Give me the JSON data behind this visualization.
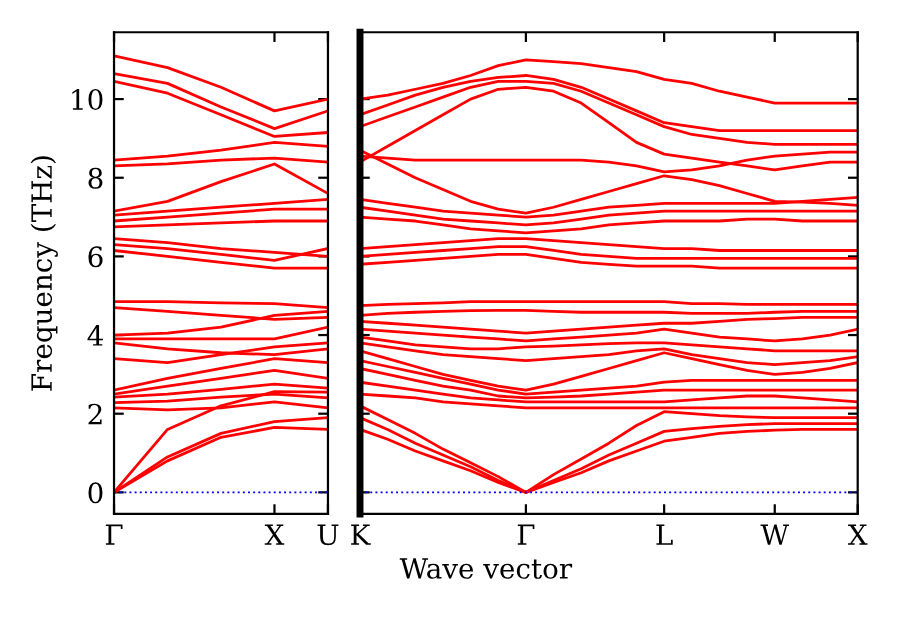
{
  "chart_data": [
    {
      "type": "line",
      "ylabel": "Frequency (THz)",
      "categories": [
        "Γ",
        null,
        null,
        "X",
        "U"
      ],
      "ylim": [
        -0.55,
        11.7
      ],
      "yticks": [
        0,
        2,
        4,
        6,
        8,
        10
      ],
      "grid": false,
      "line_style": "solid",
      "ref_lines": [
        {
          "axis": "y",
          "value": 0,
          "color": "#0000ff",
          "line_style": "dotted"
        }
      ],
      "series": [
        {
          "color": "#ff0000",
          "values": [
            11.1,
            10.8,
            10.3,
            9.7,
            10.0
          ]
        },
        {
          "color": "#ff0000",
          "values": [
            10.65,
            10.4,
            9.8,
            9.25,
            9.7
          ]
        },
        {
          "color": "#ff0000",
          "values": [
            10.45,
            10.15,
            9.6,
            9.05,
            9.15
          ]
        },
        {
          "color": "#ff0000",
          "values": [
            8.45,
            8.55,
            8.7,
            8.9,
            8.8
          ]
        },
        {
          "color": "#ff0000",
          "values": [
            8.3,
            8.35,
            8.45,
            8.5,
            8.4
          ]
        },
        {
          "color": "#ff0000",
          "values": [
            7.15,
            7.4,
            7.9,
            8.35,
            7.6
          ]
        },
        {
          "color": "#ff0000",
          "values": [
            7.05,
            7.15,
            7.25,
            7.35,
            7.45
          ]
        },
        {
          "color": "#ff0000",
          "values": [
            6.9,
            7.0,
            7.1,
            7.2,
            7.2
          ]
        },
        {
          "color": "#ff0000",
          "values": [
            6.75,
            6.8,
            6.85,
            6.9,
            6.9
          ]
        },
        {
          "color": "#ff0000",
          "values": [
            6.45,
            6.35,
            6.2,
            6.1,
            6.0
          ]
        },
        {
          "color": "#ff0000",
          "values": [
            6.3,
            6.2,
            6.05,
            5.9,
            6.2
          ]
        },
        {
          "color": "#ff0000",
          "values": [
            6.15,
            6.0,
            5.85,
            5.7,
            5.7
          ]
        },
        {
          "color": "#ff0000",
          "values": [
            4.85,
            4.85,
            4.82,
            4.8,
            4.7
          ]
        },
        {
          "color": "#ff0000",
          "values": [
            4.7,
            4.6,
            4.5,
            4.4,
            4.45
          ]
        },
        {
          "color": "#ff0000",
          "values": [
            4.0,
            4.05,
            4.2,
            4.5,
            4.6
          ]
        },
        {
          "color": "#ff0000",
          "values": [
            3.9,
            3.9,
            3.9,
            3.9,
            4.2
          ]
        },
        {
          "color": "#ff0000",
          "values": [
            3.8,
            3.65,
            3.55,
            3.5,
            3.65
          ]
        },
        {
          "color": "#ff0000",
          "values": [
            3.4,
            3.3,
            3.5,
            3.7,
            3.8
          ]
        },
        {
          "color": "#ff0000",
          "values": [
            2.6,
            2.9,
            3.15,
            3.4,
            3.3
          ]
        },
        {
          "color": "#ff0000",
          "values": [
            2.5,
            2.7,
            2.9,
            3.1,
            2.9
          ]
        },
        {
          "color": "#ff0000",
          "values": [
            2.42,
            2.5,
            2.62,
            2.75,
            2.65
          ]
        },
        {
          "color": "#ff0000",
          "values": [
            2.28,
            2.32,
            2.42,
            2.5,
            2.4
          ]
        },
        {
          "color": "#ff0000",
          "values": [
            2.15,
            2.1,
            2.15,
            2.3,
            2.15
          ]
        },
        {
          "color": "#ff0000",
          "values": [
            0,
            1.6,
            2.2,
            2.56,
            2.55
          ]
        },
        {
          "color": "#ff0000",
          "values": [
            0,
            0.9,
            1.5,
            1.8,
            1.9
          ]
        },
        {
          "color": "#ff0000",
          "values": [
            0,
            0.8,
            1.4,
            1.65,
            1.6
          ]
        }
      ]
    },
    {
      "type": "line",
      "xlabel": "Wave vector",
      "categories": [
        "K",
        null,
        null,
        null,
        null,
        null,
        "Γ",
        null,
        null,
        null,
        null,
        "L",
        null,
        null,
        null,
        "W",
        null,
        null,
        "X"
      ],
      "ylim": [
        -0.55,
        11.7
      ],
      "yticks": [
        {
          "value": 0,
          "label": null
        },
        {
          "value": 2,
          "label": null
        },
        {
          "value": 4,
          "label": null
        },
        {
          "value": 6,
          "label": null
        },
        {
          "value": 8,
          "label": null
        },
        {
          "value": 10,
          "label": null
        }
      ],
      "tick_labels": "x",
      "grid": false,
      "line_style": "solid",
      "ref_lines": [
        {
          "axis": "y",
          "value": 0,
          "color": "#0000ff",
          "line_style": "dotted"
        }
      ],
      "series": [
        {
          "color": "#ff0000",
          "values": [
            10.0,
            10.1,
            10.25,
            10.4,
            10.6,
            10.85,
            11.0,
            10.95,
            10.9,
            10.8,
            10.7,
            10.5,
            10.4,
            10.2,
            10.05,
            9.9,
            9.9,
            9.9,
            9.9
          ]
        },
        {
          "color": "#ff0000",
          "values": [
            9.6,
            9.85,
            10.1,
            10.3,
            10.45,
            10.55,
            10.6,
            10.5,
            10.3,
            10.0,
            9.7,
            9.4,
            9.3,
            9.2,
            9.2,
            9.2,
            9.2,
            9.2,
            9.2
          ]
        },
        {
          "color": "#ff0000",
          "values": [
            9.3,
            9.55,
            9.8,
            10.05,
            10.3,
            10.45,
            10.45,
            10.4,
            10.2,
            9.9,
            9.6,
            9.3,
            9.1,
            9.0,
            8.9,
            8.85,
            8.85,
            8.85,
            8.85
          ]
        },
        {
          "color": "#ff0000",
          "values": [
            8.4,
            8.8,
            9.2,
            9.6,
            10.0,
            10.25,
            10.3,
            10.2,
            9.9,
            9.4,
            8.9,
            8.6,
            8.5,
            8.4,
            8.3,
            8.2,
            8.3,
            8.4,
            8.4
          ]
        },
        {
          "color": "#ff0000",
          "values": [
            8.55,
            8.5,
            8.45,
            8.45,
            8.45,
            8.45,
            8.45,
            8.45,
            8.45,
            8.4,
            8.3,
            8.15,
            8.2,
            8.3,
            8.45,
            8.55,
            8.6,
            8.65,
            8.65
          ]
        },
        {
          "color": "#ff0000",
          "values": [
            8.7,
            8.35,
            8.0,
            7.7,
            7.4,
            7.2,
            7.1,
            7.25,
            7.45,
            7.65,
            7.85,
            8.05,
            7.95,
            7.8,
            7.6,
            7.4,
            7.38,
            7.35,
            7.3
          ]
        },
        {
          "color": "#ff0000",
          "values": [
            7.45,
            7.35,
            7.25,
            7.15,
            7.1,
            7.05,
            7.0,
            7.05,
            7.15,
            7.25,
            7.3,
            7.35,
            7.35,
            7.35,
            7.35,
            7.35,
            7.4,
            7.45,
            7.5
          ]
        },
        {
          "color": "#ff0000",
          "values": [
            7.25,
            7.15,
            7.05,
            6.95,
            6.9,
            6.85,
            6.8,
            6.85,
            6.95,
            7.05,
            7.1,
            7.15,
            7.15,
            7.15,
            7.15,
            7.15,
            7.15,
            7.15,
            7.15
          ]
        },
        {
          "color": "#ff0000",
          "values": [
            7.0,
            6.95,
            6.9,
            6.8,
            6.7,
            6.65,
            6.6,
            6.65,
            6.7,
            6.8,
            6.85,
            6.9,
            6.9,
            6.9,
            6.95,
            6.95,
            6.9,
            6.9,
            6.9
          ]
        },
        {
          "color": "#ff0000",
          "values": [
            6.2,
            6.25,
            6.3,
            6.35,
            6.4,
            6.45,
            6.45,
            6.4,
            6.35,
            6.3,
            6.25,
            6.2,
            6.2,
            6.15,
            6.15,
            6.15,
            6.15,
            6.15,
            6.15
          ]
        },
        {
          "color": "#ff0000",
          "values": [
            6.0,
            6.05,
            6.1,
            6.15,
            6.2,
            6.25,
            6.25,
            6.15,
            6.05,
            6.0,
            5.95,
            5.95,
            5.95,
            5.95,
            5.95,
            5.95,
            5.95,
            5.95,
            5.95
          ]
        },
        {
          "color": "#ff0000",
          "values": [
            5.8,
            5.85,
            5.9,
            5.95,
            6.0,
            6.05,
            6.05,
            5.95,
            5.85,
            5.8,
            5.75,
            5.75,
            5.75,
            5.7,
            5.7,
            5.7,
            5.7,
            5.7,
            5.7
          ]
        },
        {
          "color": "#ff0000",
          "values": [
            4.75,
            4.78,
            4.8,
            4.82,
            4.85,
            4.85,
            4.85,
            4.85,
            4.85,
            4.85,
            4.85,
            4.85,
            4.8,
            4.8,
            4.78,
            4.78,
            4.78,
            4.78,
            4.78
          ]
        },
        {
          "color": "#ff0000",
          "values": [
            4.5,
            4.55,
            4.58,
            4.6,
            4.62,
            4.63,
            4.63,
            4.6,
            4.58,
            4.58,
            4.58,
            4.58,
            4.55,
            4.55,
            4.55,
            4.58,
            4.6,
            4.6,
            4.6
          ]
        },
        {
          "color": "#ff0000",
          "values": [
            4.35,
            4.3,
            4.25,
            4.2,
            4.15,
            4.1,
            4.05,
            4.1,
            4.15,
            4.2,
            4.25,
            4.3,
            4.3,
            4.35,
            4.4,
            4.42,
            4.45,
            4.45,
            4.45
          ]
        },
        {
          "color": "#ff0000",
          "values": [
            4.15,
            4.1,
            4.05,
            4.0,
            3.95,
            3.9,
            3.85,
            3.9,
            3.95,
            4.0,
            4.05,
            4.15,
            4.05,
            3.95,
            3.9,
            3.85,
            3.9,
            4.0,
            4.15
          ]
        },
        {
          "color": "#ff0000",
          "values": [
            3.95,
            3.85,
            3.75,
            3.7,
            3.65,
            3.65,
            3.7,
            3.72,
            3.75,
            3.78,
            3.8,
            3.8,
            3.75,
            3.7,
            3.65,
            3.6,
            3.6,
            3.6,
            3.6
          ]
        },
        {
          "color": "#ff0000",
          "values": [
            3.8,
            3.7,
            3.6,
            3.5,
            3.45,
            3.4,
            3.35,
            3.4,
            3.45,
            3.5,
            3.6,
            3.65,
            3.5,
            3.4,
            3.3,
            3.25,
            3.3,
            3.35,
            3.45
          ]
        },
        {
          "color": "#ff0000",
          "values": [
            3.6,
            3.4,
            3.2,
            3.0,
            2.85,
            2.7,
            2.6,
            2.75,
            2.95,
            3.15,
            3.35,
            3.55,
            3.4,
            3.25,
            3.1,
            3.0,
            3.05,
            3.15,
            3.3
          ]
        },
        {
          "color": "#ff0000",
          "values": [
            3.35,
            3.2,
            3.05,
            2.9,
            2.75,
            2.6,
            2.5,
            2.55,
            2.6,
            2.65,
            2.7,
            2.8,
            2.85,
            2.85,
            2.85,
            2.85,
            2.85,
            2.85,
            2.85
          ]
        },
        {
          "color": "#ff0000",
          "values": [
            3.15,
            3.0,
            2.85,
            2.7,
            2.6,
            2.45,
            2.4,
            2.42,
            2.45,
            2.5,
            2.55,
            2.6,
            2.6,
            2.6,
            2.6,
            2.6,
            2.6,
            2.6,
            2.6
          ]
        },
        {
          "color": "#ff0000",
          "values": [
            2.8,
            2.7,
            2.6,
            2.5,
            2.4,
            2.35,
            2.3,
            2.3,
            2.3,
            2.3,
            2.3,
            2.3,
            2.35,
            2.4,
            2.45,
            2.45,
            2.4,
            2.35,
            2.3
          ]
        },
        {
          "color": "#ff0000",
          "values": [
            2.5,
            2.45,
            2.4,
            2.3,
            2.25,
            2.2,
            2.15,
            2.15,
            2.15,
            2.15,
            2.15,
            2.15,
            2.15,
            2.15,
            2.15,
            2.15,
            2.15,
            2.15,
            2.15
          ]
        },
        {
          "color": "#ff0000",
          "values": [
            2.2,
            1.85,
            1.5,
            1.1,
            0.75,
            0.4,
            0,
            0.45,
            0.85,
            1.25,
            1.7,
            2.05,
            2.0,
            1.95,
            1.92,
            1.9,
            1.9,
            1.9,
            1.9
          ]
        },
        {
          "color": "#ff0000",
          "values": [
            1.9,
            1.6,
            1.25,
            0.95,
            0.65,
            0.3,
            0,
            0.3,
            0.6,
            0.95,
            1.25,
            1.55,
            1.62,
            1.68,
            1.72,
            1.75,
            1.75,
            1.75,
            1.75
          ]
        },
        {
          "color": "#ff0000",
          "values": [
            1.6,
            1.35,
            1.05,
            0.8,
            0.55,
            0.25,
            0,
            0.25,
            0.5,
            0.8,
            1.05,
            1.3,
            1.4,
            1.5,
            1.55,
            1.58,
            1.6,
            1.6,
            1.6
          ]
        }
      ]
    }
  ]
}
